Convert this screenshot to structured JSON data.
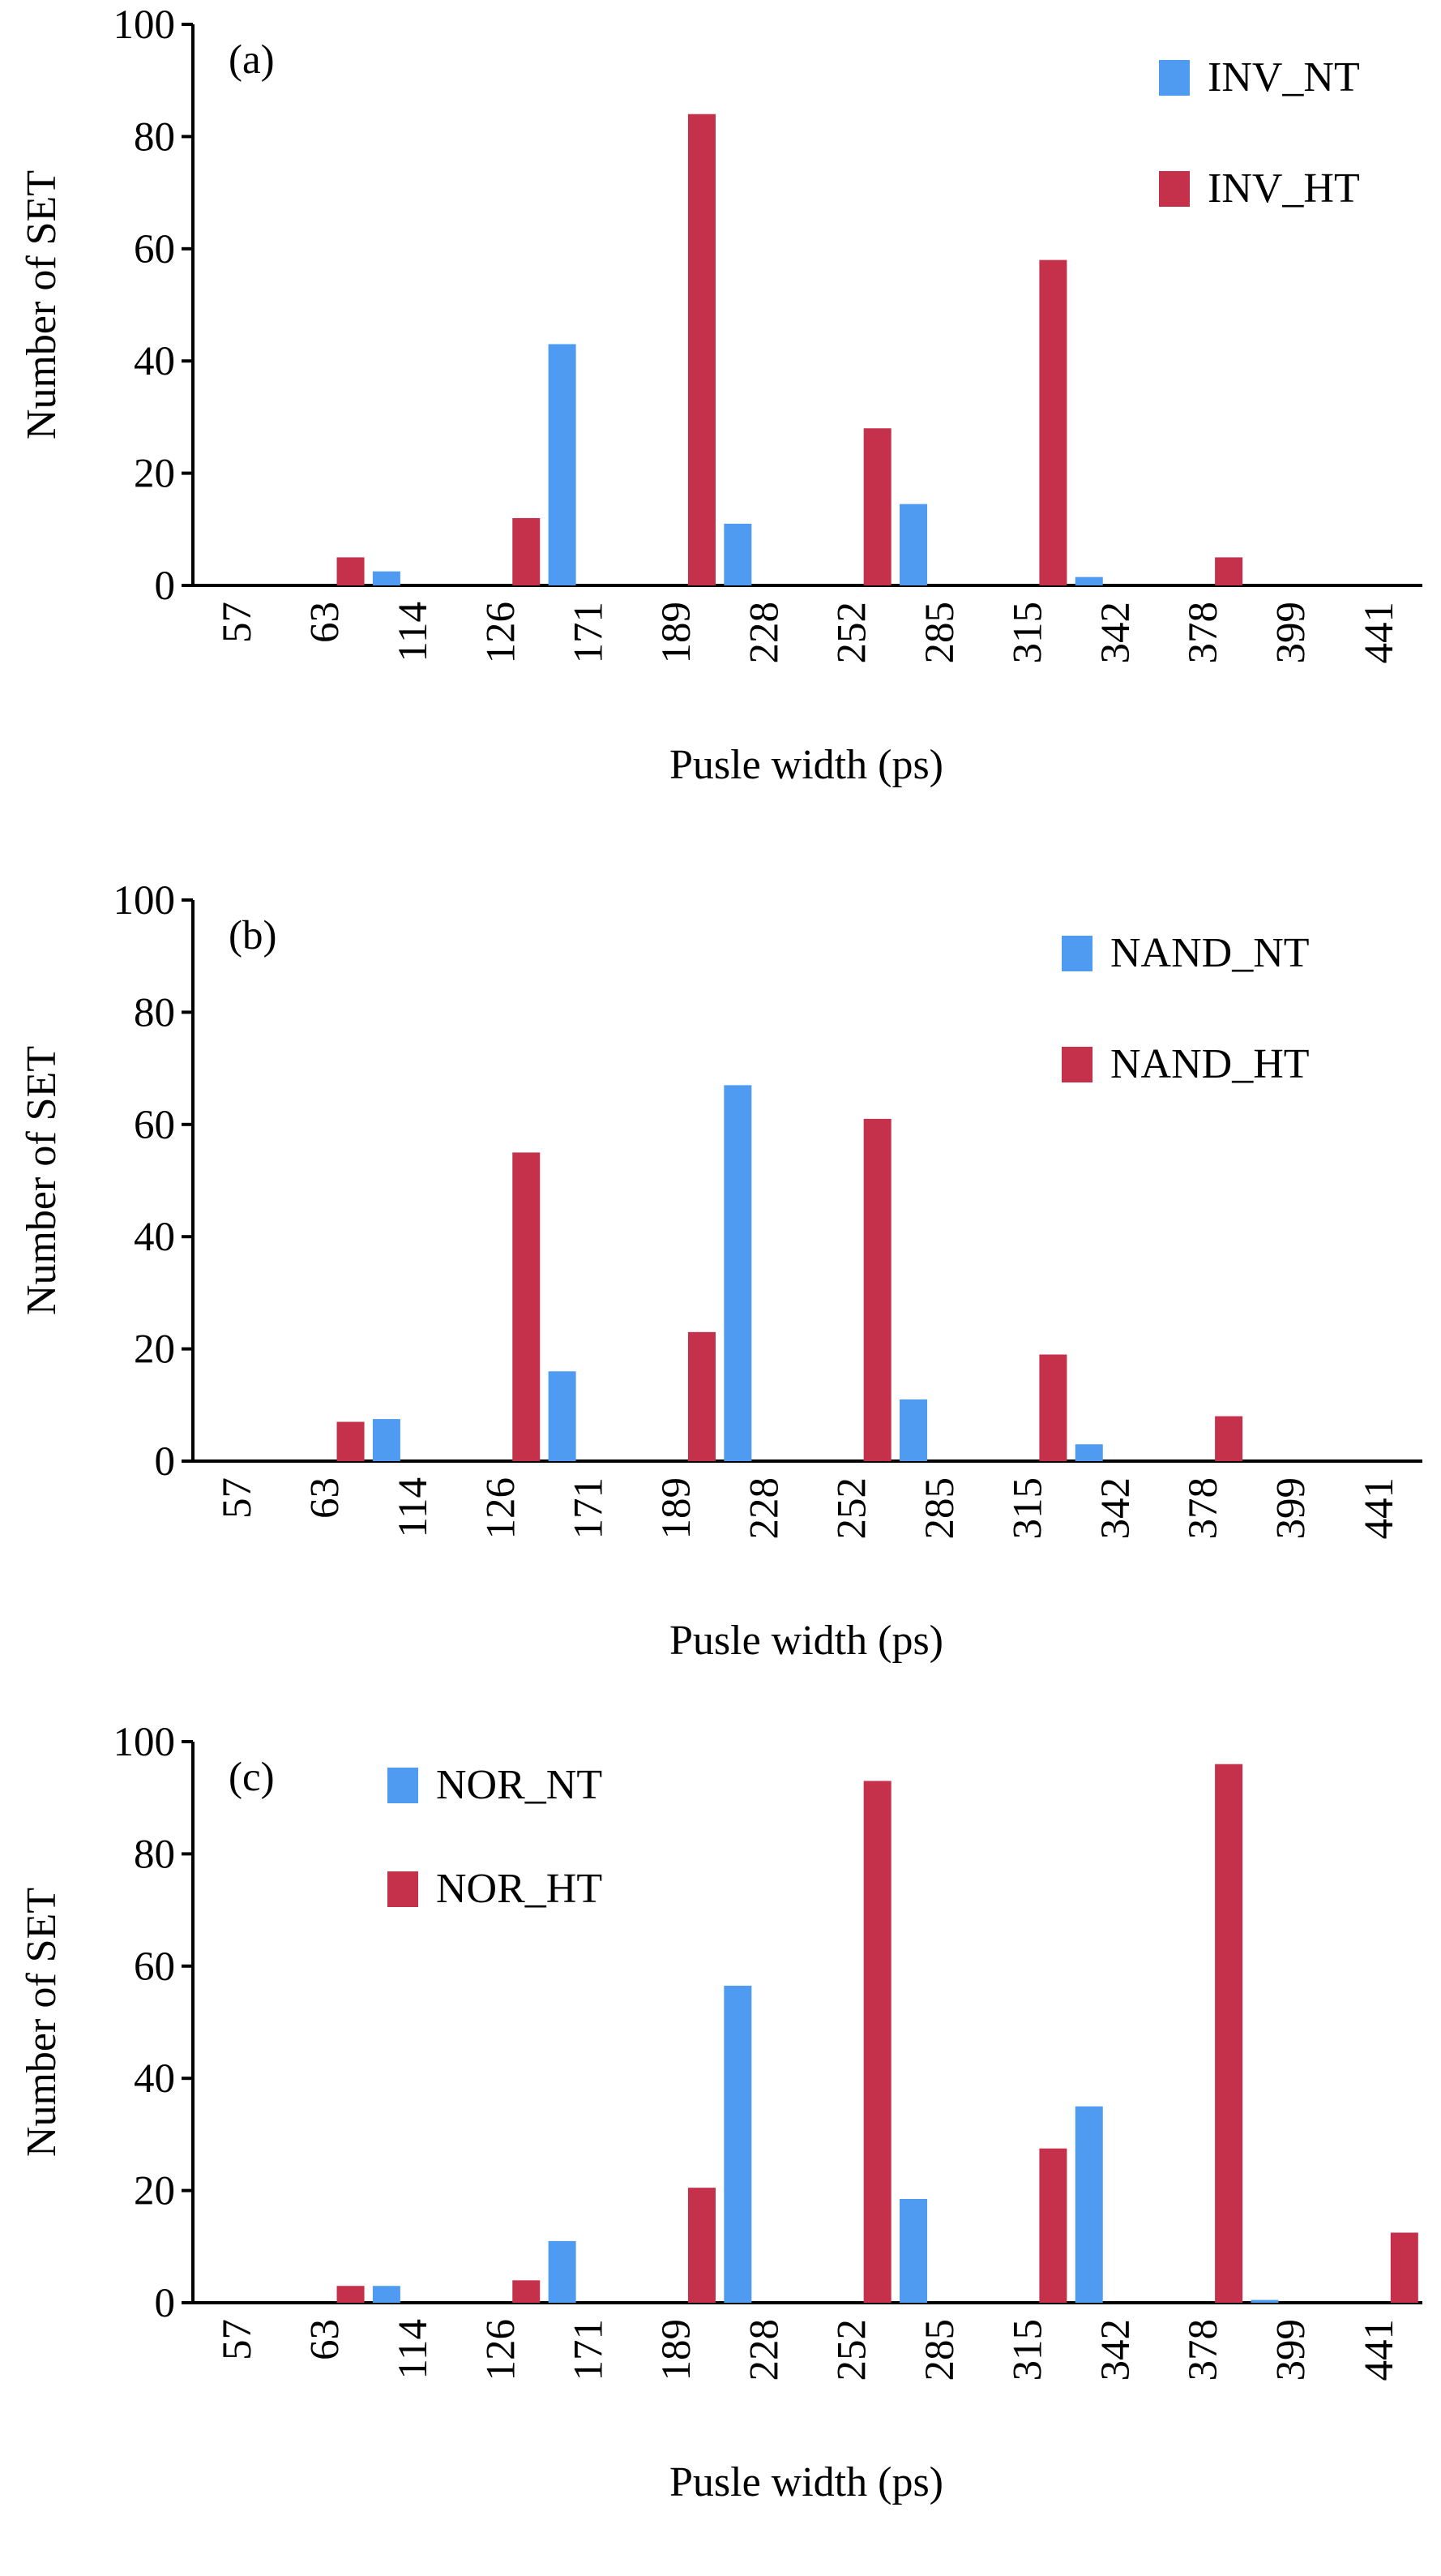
{
  "chart_data": [
    {
      "type": "bar",
      "panel_label": "(a)",
      "xlabel": "Pusle width (ps)",
      "ylabel": "Number of SET",
      "ylim": [
        0,
        100
      ],
      "yticks": [
        0,
        20,
        40,
        60,
        80,
        100
      ],
      "categories": [
        "57",
        "63",
        "114",
        "126",
        "171",
        "189",
        "228",
        "252",
        "285",
        "315",
        "342",
        "378",
        "399",
        "441"
      ],
      "legend_position": "top-right",
      "series": [
        {
          "name": "INV_NT",
          "color": "#4F9BF2",
          "values": [
            0,
            0,
            2.5,
            0,
            43,
            0,
            11,
            0,
            14.5,
            0,
            1.5,
            0,
            0,
            0
          ]
        },
        {
          "name": "INV_HT",
          "color": "#C5304A",
          "values": [
            0,
            5,
            0,
            12,
            0,
            84,
            0,
            28,
            0,
            58,
            0,
            5,
            0,
            0
          ]
        }
      ]
    },
    {
      "type": "bar",
      "panel_label": "(b)",
      "xlabel": "Pusle width (ps)",
      "ylabel": "Number of SET",
      "ylim": [
        0,
        100
      ],
      "yticks": [
        0,
        20,
        40,
        60,
        80,
        100
      ],
      "categories": [
        "57",
        "63",
        "114",
        "126",
        "171",
        "189",
        "228",
        "252",
        "285",
        "315",
        "342",
        "378",
        "399",
        "441"
      ],
      "legend_position": "top-right",
      "series": [
        {
          "name": "NAND_NT",
          "color": "#4F9BF2",
          "values": [
            0,
            0,
            7.5,
            0,
            16,
            0,
            67,
            0,
            11,
            0,
            3,
            0,
            0,
            0
          ]
        },
        {
          "name": "NAND_HT",
          "color": "#C5304A",
          "values": [
            0,
            7,
            0,
            55,
            0,
            23,
            0,
            61,
            0,
            19,
            0,
            8,
            0,
            0
          ]
        }
      ]
    },
    {
      "type": "bar",
      "panel_label": "(c)",
      "xlabel": "Pusle width (ps)",
      "ylabel": "Number of SET",
      "ylim": [
        0,
        100
      ],
      "yticks": [
        0,
        20,
        40,
        60,
        80,
        100
      ],
      "categories": [
        "57",
        "63",
        "114",
        "126",
        "171",
        "189",
        "228",
        "252",
        "285",
        "315",
        "342",
        "378",
        "399",
        "441"
      ],
      "legend_position": "top-left",
      "series": [
        {
          "name": "NOR_NT",
          "color": "#4F9BF2",
          "values": [
            0,
            0,
            3,
            0,
            11,
            0,
            56.5,
            0,
            18.5,
            0,
            35,
            0,
            0.5,
            0
          ]
        },
        {
          "name": "NOR_HT",
          "color": "#C5304A",
          "values": [
            0,
            3,
            0,
            4,
            0,
            20.5,
            0,
            93,
            0,
            27.5,
            0,
            96,
            0,
            12.5
          ]
        }
      ]
    }
  ]
}
